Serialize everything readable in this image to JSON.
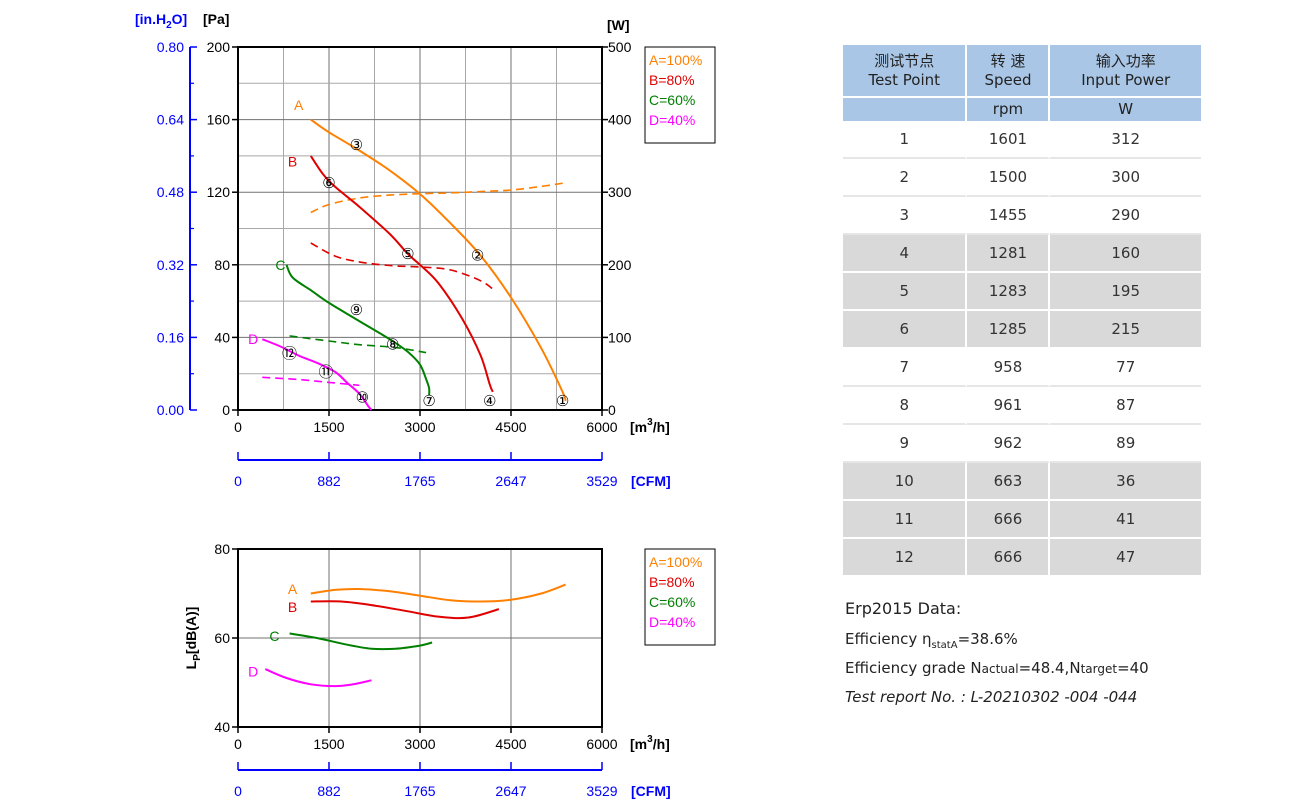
{
  "colors": {
    "A": "#ff8000",
    "B": "#e00000",
    "C": "#008000",
    "D": "#ff00ff",
    "axis_blue": "#0000ff",
    "header_blue": "#a9c6e6",
    "row_grey": "#d9d9d9"
  },
  "chart_data": [
    {
      "type": "line",
      "title": "",
      "xlabel": "[m3/h]",
      "x_unit_base": "m",
      "x_unit_exp": "3",
      "x_unit_tail": "/h",
      "x_ticks": [
        "0",
        "1500",
        "3000",
        "4500",
        "6000"
      ],
      "xlim": [
        0,
        6000
      ],
      "x2_label": "[CFM]",
      "x2_ticks": [
        "0",
        "882",
        "1765",
        "2647",
        "3529"
      ],
      "ylabel": "[Pa]",
      "ylim": [
        0,
        200
      ],
      "y_ticks": [
        "0",
        "40",
        "80",
        "120",
        "160",
        "200"
      ],
      "y2_label": "[in.H2O]",
      "y2_label_pre": "[in.H",
      "y2_label_sub": "2",
      "y2_label_post": "O]",
      "y2_ticks": [
        "0.00",
        "0.16",
        "0.32",
        "0.48",
        "0.64",
        "0.80"
      ],
      "y3_label": "[W]",
      "y3_ticks": [
        "0",
        "100",
        "200",
        "300",
        "400",
        "500"
      ],
      "y3_lim": [
        0,
        500
      ],
      "grid": true,
      "legend": [
        "A=100%",
        "B=80%",
        "C=60%",
        "D=40%"
      ],
      "legend_position": "right",
      "series": [
        {
          "name": "A=100%",
          "label": "A",
          "label_at": [
            1000,
            168
          ],
          "points": [
            [
              1200,
              160
            ],
            [
              1500,
              153
            ],
            [
              2000,
              143
            ],
            [
              2500,
              132
            ],
            [
              3000,
              119
            ],
            [
              3500,
              103
            ],
            [
              4000,
              85
            ],
            [
              4500,
              62
            ],
            [
              5000,
              34
            ],
            [
              5350,
              10
            ],
            [
              5400,
              5
            ]
          ]
        },
        {
          "name": "B=80%",
          "label": "B",
          "label_at": [
            900,
            137
          ],
          "points": [
            [
              1200,
              140
            ],
            [
              1400,
              130
            ],
            [
              1600,
              123
            ],
            [
              2000,
              112
            ],
            [
              2500,
              97
            ],
            [
              2800,
              86
            ],
            [
              3000,
              80
            ],
            [
              3300,
              70
            ],
            [
              3700,
              50
            ],
            [
              4000,
              30
            ],
            [
              4150,
              14
            ],
            [
              4200,
              10
            ]
          ]
        },
        {
          "name": "C=60%",
          "label": "C",
          "label_at": [
            700,
            80
          ],
          "points": [
            [
              800,
              80
            ],
            [
              900,
              73
            ],
            [
              1200,
              66
            ],
            [
              1500,
              59
            ],
            [
              2000,
              49
            ],
            [
              2500,
              39
            ],
            [
              2800,
              32
            ],
            [
              3000,
              25
            ],
            [
              3100,
              17
            ],
            [
              3150,
              12
            ],
            [
              3150,
              8
            ]
          ]
        },
        {
          "name": "D=40%",
          "label": "D",
          "label_at": [
            250,
            39
          ],
          "points": [
            [
              400,
              39
            ],
            [
              700,
              35
            ],
            [
              1000,
              30
            ],
            [
              1300,
              26
            ],
            [
              1600,
              21
            ],
            [
              1800,
              15
            ],
            [
              2000,
              9
            ],
            [
              2150,
              2
            ],
            [
              2200,
              0
            ]
          ]
        }
      ],
      "power_series": [
        {
          "name": "A=100%",
          "points": [
            [
              1200,
              272
            ],
            [
              1500,
              283
            ],
            [
              2000,
              292
            ],
            [
              2500,
              296
            ],
            [
              3000,
              298
            ],
            [
              3500,
              299
            ],
            [
              4000,
              301
            ],
            [
              4500,
              303
            ],
            [
              5000,
              308
            ],
            [
              5400,
              313
            ]
          ]
        },
        {
          "name": "B=80%",
          "points": [
            [
              1200,
              230
            ],
            [
              1600,
              212
            ],
            [
              2000,
              204
            ],
            [
              2500,
              199
            ],
            [
              3000,
              197
            ],
            [
              3500,
              193
            ],
            [
              4000,
              178
            ],
            [
              4250,
              163
            ]
          ]
        },
        {
          "name": "C=60%",
          "points": [
            [
              850,
              102
            ],
            [
              1500,
              95
            ],
            [
              2000,
              90
            ],
            [
              2600,
              86
            ],
            [
              3100,
              79
            ]
          ]
        },
        {
          "name": "D=40%",
          "points": [
            [
              400,
              45
            ],
            [
              1000,
              42
            ],
            [
              1500,
              38
            ],
            [
              2000,
              34
            ]
          ]
        }
      ],
      "test_points": [
        {
          "label": "①",
          "x": 5350,
          "y": 5
        },
        {
          "label": "②",
          "x": 3950,
          "y": 85
        },
        {
          "label": "③",
          "x": 1950,
          "y": 146
        },
        {
          "label": "④",
          "x": 4150,
          "y": 5
        },
        {
          "label": "⑤",
          "x": 2800,
          "y": 86
        },
        {
          "label": "⑥",
          "x": 1500,
          "y": 125
        },
        {
          "label": "⑦",
          "x": 3150,
          "y": 5
        },
        {
          "label": "⑧",
          "x": 2550,
          "y": 36
        },
        {
          "label": "⑨",
          "x": 1950,
          "y": 55
        },
        {
          "label": "⑩",
          "x": 2050,
          "y": 7
        },
        {
          "label": "⑪",
          "x": 1450,
          "y": 21
        },
        {
          "label": "⑫",
          "x": 850,
          "y": 31
        }
      ]
    },
    {
      "type": "line",
      "title": "",
      "xlabel": "[m3/h]",
      "x_unit_base": "m",
      "x_unit_exp": "3",
      "x_unit_tail": "/h",
      "x_ticks": [
        "0",
        "1500",
        "3000",
        "4500",
        "6000"
      ],
      "xlim": [
        0,
        6000
      ],
      "x2_label": "[CFM]",
      "x2_ticks": [
        "0",
        "882",
        "1765",
        "2647",
        "3529"
      ],
      "ylabel": "LP[dB(A)]",
      "ylabel_base": "L",
      "ylabel_sub": "P",
      "ylabel_tail": "[dB(A)]",
      "ylim": [
        40,
        80
      ],
      "y_ticks": [
        "40",
        "60",
        "80"
      ],
      "grid": true,
      "legend": [
        "A=100%",
        "B=80%",
        "C=60%",
        "D=40%"
      ],
      "legend_position": "right",
      "series": [
        {
          "name": "A=100%",
          "label": "A",
          "label_at": [
            900,
            71
          ],
          "points": [
            [
              1200,
              70
            ],
            [
              1600,
              70.8
            ],
            [
              2000,
              71
            ],
            [
              2500,
              70.5
            ],
            [
              3000,
              69.5
            ],
            [
              3500,
              68.5
            ],
            [
              4000,
              68.2
            ],
            [
              4500,
              68.6
            ],
            [
              5000,
              70
            ],
            [
              5400,
              72
            ]
          ]
        },
        {
          "name": "B=80%",
          "label": "B",
          "label_at": [
            900,
            67
          ],
          "points": [
            [
              1200,
              68.2
            ],
            [
              1700,
              68.2
            ],
            [
              2200,
              67.4
            ],
            [
              2800,
              66
            ],
            [
              3300,
              64.8
            ],
            [
              3800,
              64.6
            ],
            [
              4300,
              66.5
            ]
          ]
        },
        {
          "name": "C=60%",
          "label": "C",
          "label_at": [
            600,
            60.5
          ],
          "points": [
            [
              850,
              61
            ],
            [
              1300,
              60
            ],
            [
              1800,
              58.5
            ],
            [
              2200,
              57.6
            ],
            [
              2600,
              57.6
            ],
            [
              3000,
              58.3
            ],
            [
              3200,
              59
            ]
          ]
        },
        {
          "name": "D=40%",
          "label": "D",
          "label_at": [
            250,
            52.5
          ],
          "points": [
            [
              450,
              53
            ],
            [
              800,
              51
            ],
            [
              1200,
              49.6
            ],
            [
              1600,
              49.2
            ],
            [
              1900,
              49.6
            ],
            [
              2200,
              50.5
            ]
          ]
        }
      ]
    }
  ],
  "table": {
    "headers": [
      {
        "zh": "测试节点",
        "en": "Test Point",
        "unit": ""
      },
      {
        "zh": "转 速",
        "en": "Speed",
        "unit": "rpm"
      },
      {
        "zh": "输入功率",
        "en": "Input Power",
        "unit": "W"
      }
    ],
    "rows": [
      [
        "1",
        "1601",
        "312"
      ],
      [
        "2",
        "1500",
        "300"
      ],
      [
        "3",
        "1455",
        "290"
      ],
      [
        "4",
        "1281",
        "160"
      ],
      [
        "5",
        "1283",
        "195"
      ],
      [
        "6",
        "1285",
        "215"
      ],
      [
        "7",
        "958",
        "77"
      ],
      [
        "8",
        "961",
        "87"
      ],
      [
        "9",
        "962",
        "89"
      ],
      [
        "10",
        "663",
        "36"
      ],
      [
        "11",
        "666",
        "41"
      ],
      [
        "12",
        "666",
        "47"
      ]
    ]
  },
  "notes": {
    "title": "Erp2015  Data:",
    "efficiency_label": "Efficiency η",
    "efficiency_sub": "statA",
    "efficiency_value": "=38.6%",
    "grade_label": "Efficiency grade  N",
    "grade_actual_sub": "actual",
    "grade_actual_value": "=48.4,N",
    "grade_target_sub": "target",
    "grade_target_value": "=40",
    "report": "Test report No.  : L-20210302 -004 -044"
  }
}
